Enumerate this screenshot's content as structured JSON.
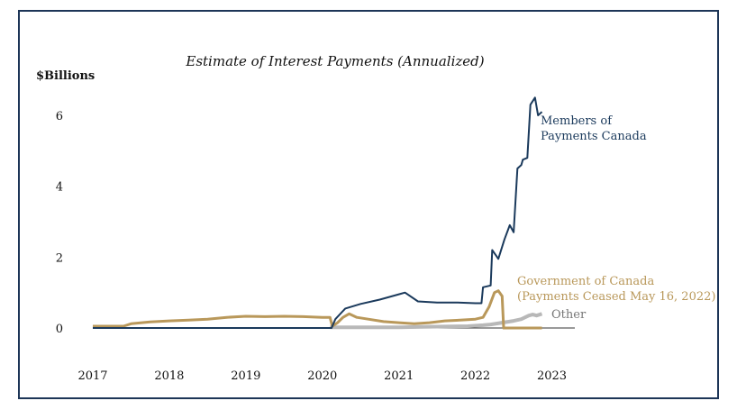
{
  "chart_data": {
    "type": "line",
    "title": "Estimate of Interest Payments (Annualized)",
    "ylabel": "$Billions",
    "xlabel": "",
    "ylim": [
      0,
      7
    ],
    "xlim": [
      2017.0,
      2023.3
    ],
    "yticks": [
      "0",
      "2",
      "4",
      "6"
    ],
    "xticks": [
      "2017",
      "2018",
      "2019",
      "2020",
      "2021",
      "2022",
      "2023"
    ],
    "grid": false,
    "colors": {
      "members": "#1b3a5c",
      "government": "#b9985a",
      "other": "#b8b8b8",
      "axis": "#333333"
    },
    "series": [
      {
        "name": "Members of Payments Canada",
        "label_lines": [
          "Members of",
          "Payments Canada"
        ],
        "x": [
          2017.0,
          2020.0,
          2020.12,
          2020.17,
          2020.3,
          2020.5,
          2020.75,
          2021.0,
          2021.08,
          2021.25,
          2021.5,
          2021.75,
          2022.0,
          2022.08,
          2022.1,
          2022.2,
          2022.22,
          2022.27,
          2022.3,
          2022.38,
          2022.45,
          2022.5,
          2022.55,
          2022.6,
          2022.62,
          2022.68,
          2022.72,
          2022.78,
          2022.82,
          2022.87
        ],
        "y": [
          0.0,
          0.0,
          0.0,
          0.25,
          0.55,
          0.68,
          0.8,
          0.95,
          1.0,
          0.75,
          0.72,
          0.72,
          0.7,
          0.7,
          1.15,
          1.2,
          2.2,
          2.05,
          1.95,
          2.5,
          2.9,
          2.7,
          4.5,
          4.6,
          4.75,
          4.8,
          6.3,
          6.5,
          6.0,
          6.1
        ]
      },
      {
        "name": "Government of Canada (Payments Ceased May 16, 2022)",
        "label_lines": [
          "Government of Canada",
          "(Payments Ceased May 16, 2022)"
        ],
        "x": [
          2017.0,
          2017.4,
          2017.5,
          2017.75,
          2018.0,
          2018.25,
          2018.5,
          2018.75,
          2019.0,
          2019.25,
          2019.5,
          2019.75,
          2020.0,
          2020.1,
          2020.13,
          2020.2,
          2020.27,
          2020.35,
          2020.45,
          2020.6,
          2020.8,
          2021.0,
          2021.2,
          2021.4,
          2021.6,
          2021.8,
          2022.0,
          2022.1,
          2022.18,
          2022.25,
          2022.3,
          2022.35,
          2022.37,
          2022.6,
          2022.87
        ],
        "y": [
          0.05,
          0.05,
          0.12,
          0.17,
          0.2,
          0.22,
          0.25,
          0.3,
          0.33,
          0.32,
          0.33,
          0.32,
          0.3,
          0.3,
          0.05,
          0.15,
          0.3,
          0.4,
          0.3,
          0.25,
          0.18,
          0.15,
          0.12,
          0.15,
          0.2,
          0.22,
          0.25,
          0.3,
          0.6,
          1.0,
          1.05,
          0.9,
          0.0,
          0.0,
          0.0
        ]
      },
      {
        "name": "Other",
        "label_lines": [
          "Other"
        ],
        "x": [
          2020.1,
          2020.4,
          2020.7,
          2021.0,
          2021.3,
          2021.6,
          2021.9,
          2022.1,
          2022.2,
          2022.35,
          2022.5,
          2022.6,
          2022.7,
          2022.75,
          2022.8,
          2022.87
        ],
        "y": [
          0.02,
          0.02,
          0.02,
          0.02,
          0.03,
          0.04,
          0.05,
          0.08,
          0.1,
          0.15,
          0.2,
          0.25,
          0.35,
          0.38,
          0.35,
          0.4
        ]
      }
    ]
  }
}
